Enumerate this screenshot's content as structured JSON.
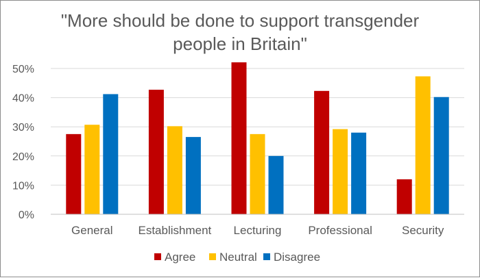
{
  "chart_data": {
    "type": "bar",
    "title_lines": [
      "\"More should be done to support transgender",
      "people in Britain\""
    ],
    "categories": [
      "General",
      "Establishment",
      "Lecturing",
      "Professional",
      "Security"
    ],
    "series": [
      {
        "name": "Agree",
        "color": "#C00000",
        "values": [
          27.5,
          42.7,
          52.1,
          42.3,
          12.0
        ]
      },
      {
        "name": "Neutral",
        "color": "#FFC000",
        "values": [
          30.7,
          30.2,
          27.5,
          29.2,
          47.3
        ]
      },
      {
        "name": "Disagree",
        "color": "#0070C0",
        "values": [
          41.2,
          26.5,
          20.0,
          28.0,
          40.2
        ]
      }
    ],
    "ylim": [
      0,
      50
    ],
    "yticks": [
      0,
      10,
      20,
      30,
      40,
      50
    ],
    "ytick_labels": [
      "0%",
      "10%",
      "20%",
      "30%",
      "40%",
      "50%"
    ],
    "grid": true,
    "legend_position": "bottom"
  }
}
